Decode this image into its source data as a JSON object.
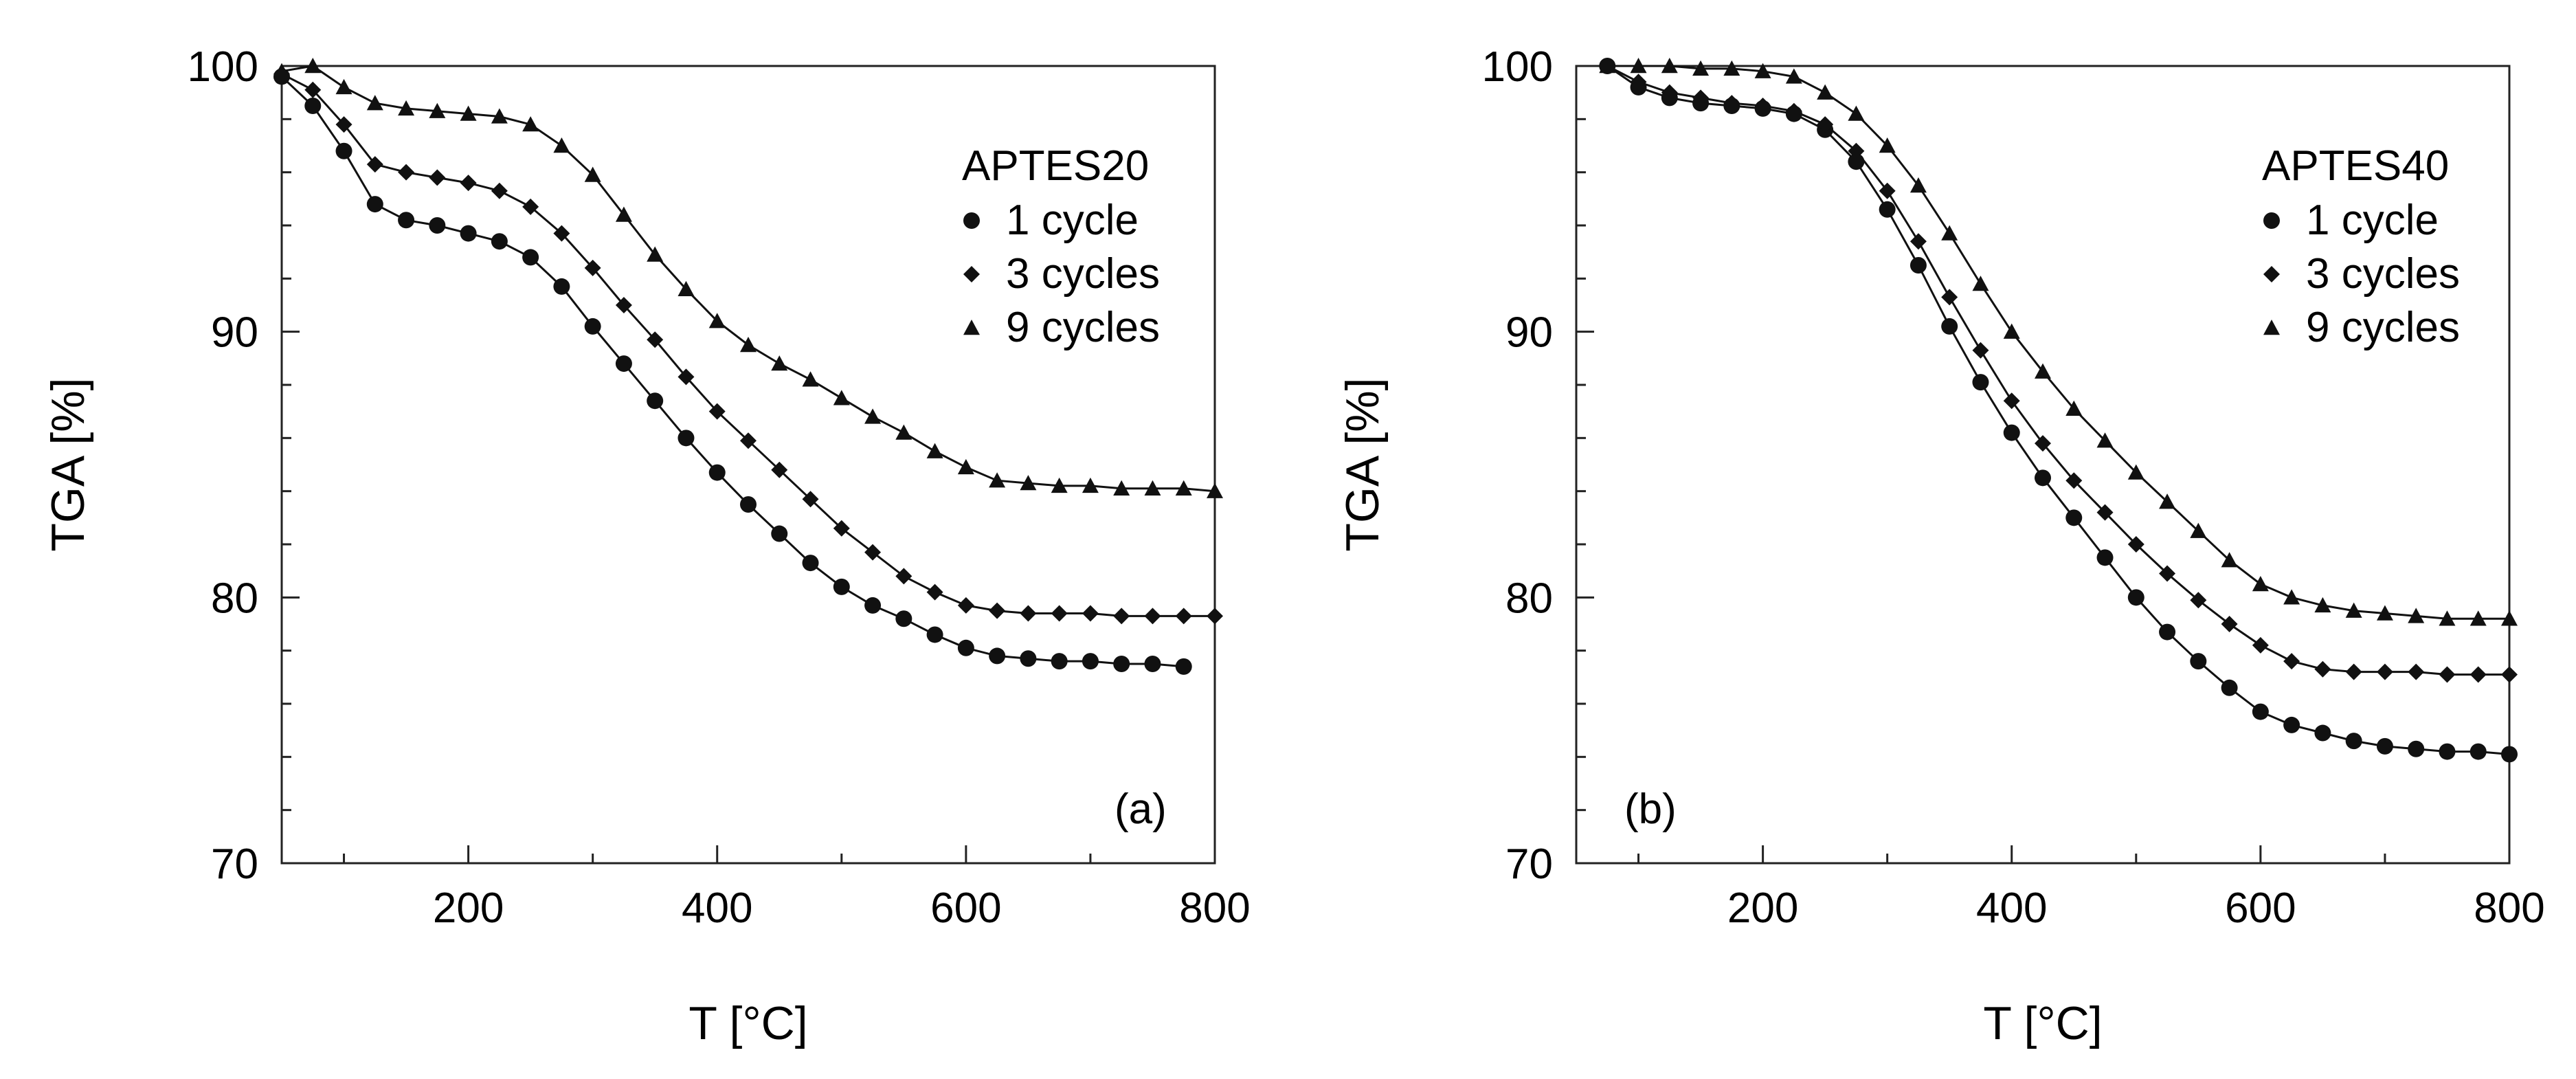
{
  "chart_data": [
    {
      "type": "scatter",
      "panel_label": "(a)",
      "legend_title": "APTES20",
      "legend_position": "top-right",
      "xlabel": "T [°C]",
      "ylabel": "TGA [%]",
      "xlim": [
        50,
        800
      ],
      "ylim": [
        70,
        100
      ],
      "xticks": [
        "200",
        "400",
        "600",
        "800"
      ],
      "yticks": [
        "70",
        "80",
        "90",
        "100"
      ],
      "series": [
        {
          "name": "1 cycle",
          "marker": "circle",
          "x": [
            50,
            75,
            100,
            125,
            150,
            175,
            200,
            225,
            250,
            275,
            300,
            325,
            350,
            375,
            400,
            425,
            450,
            475,
            500,
            525,
            550,
            575,
            600,
            625,
            650,
            675,
            700,
            725,
            750,
            775
          ],
          "y": [
            99.6,
            98.5,
            96.8,
            94.8,
            94.2,
            94.0,
            93.7,
            93.4,
            92.8,
            91.7,
            90.2,
            88.8,
            87.4,
            86.0,
            84.7,
            83.5,
            82.4,
            81.3,
            80.4,
            79.7,
            79.2,
            78.6,
            78.1,
            77.8,
            77.7,
            77.6,
            77.6,
            77.5,
            77.5,
            77.4
          ]
        },
        {
          "name": "3 cycles",
          "marker": "diamond",
          "x": [
            50,
            75,
            100,
            125,
            150,
            175,
            200,
            225,
            250,
            275,
            300,
            325,
            350,
            375,
            400,
            425,
            450,
            475,
            500,
            525,
            550,
            575,
            600,
            625,
            650,
            675,
            700,
            725,
            750,
            775,
            800
          ],
          "y": [
            99.7,
            99.1,
            97.8,
            96.3,
            96.0,
            95.8,
            95.6,
            95.3,
            94.7,
            93.7,
            92.4,
            91.0,
            89.7,
            88.3,
            87.0,
            85.9,
            84.8,
            83.7,
            82.6,
            81.7,
            80.8,
            80.2,
            79.7,
            79.5,
            79.4,
            79.4,
            79.4,
            79.3,
            79.3,
            79.3,
            79.3
          ]
        },
        {
          "name": "9 cycles",
          "marker": "triangle",
          "x": [
            50,
            75,
            100,
            125,
            150,
            175,
            200,
            225,
            250,
            275,
            300,
            325,
            350,
            375,
            400,
            425,
            450,
            475,
            500,
            525,
            550,
            575,
            600,
            625,
            650,
            675,
            700,
            725,
            750,
            775,
            800
          ],
          "y": [
            99.8,
            100.0,
            99.2,
            98.6,
            98.4,
            98.3,
            98.2,
            98.1,
            97.8,
            97.0,
            95.9,
            94.4,
            92.9,
            91.6,
            90.4,
            89.5,
            88.8,
            88.2,
            87.5,
            86.8,
            86.2,
            85.5,
            84.9,
            84.4,
            84.3,
            84.2,
            84.2,
            84.1,
            84.1,
            84.1,
            84.0
          ]
        }
      ]
    },
    {
      "type": "scatter",
      "panel_label": "(b)",
      "legend_title": "APTES40",
      "legend_position": "top-right",
      "xlabel": "T [°C]",
      "ylabel": "TGA [%]",
      "xlim": [
        50,
        800
      ],
      "ylim": [
        70,
        100
      ],
      "xticks": [
        "200",
        "400",
        "600",
        "800"
      ],
      "yticks": [
        "70",
        "80",
        "90",
        "100"
      ],
      "series": [
        {
          "name": "1 cycle",
          "marker": "circle",
          "x": [
            75,
            100,
            125,
            150,
            175,
            200,
            225,
            250,
            275,
            300,
            325,
            350,
            375,
            400,
            425,
            450,
            475,
            500,
            525,
            550,
            575,
            600,
            625,
            650,
            675,
            700,
            725,
            750,
            775,
            800
          ],
          "y": [
            100.0,
            99.2,
            98.8,
            98.6,
            98.5,
            98.4,
            98.2,
            97.6,
            96.4,
            94.6,
            92.5,
            90.2,
            88.1,
            86.2,
            84.5,
            83.0,
            81.5,
            80.0,
            78.7,
            77.6,
            76.6,
            75.7,
            75.2,
            74.9,
            74.6,
            74.4,
            74.3,
            74.2,
            74.2,
            74.1
          ]
        },
        {
          "name": "3 cycles",
          "marker": "diamond",
          "x": [
            75,
            100,
            125,
            150,
            175,
            200,
            225,
            250,
            275,
            300,
            325,
            350,
            375,
            400,
            425,
            450,
            475,
            500,
            525,
            550,
            575,
            600,
            625,
            650,
            675,
            700,
            725,
            750,
            775,
            800
          ],
          "y": [
            100.0,
            99.4,
            99.0,
            98.8,
            98.6,
            98.5,
            98.3,
            97.8,
            96.8,
            95.3,
            93.4,
            91.3,
            89.3,
            87.4,
            85.8,
            84.4,
            83.2,
            82.0,
            80.9,
            79.9,
            79.0,
            78.2,
            77.6,
            77.3,
            77.2,
            77.2,
            77.2,
            77.1,
            77.1,
            77.1
          ]
        },
        {
          "name": "9 cycles",
          "marker": "triangle",
          "x": [
            75,
            100,
            125,
            150,
            175,
            200,
            225,
            250,
            275,
            300,
            325,
            350,
            375,
            400,
            425,
            450,
            475,
            500,
            525,
            550,
            575,
            600,
            625,
            650,
            675,
            700,
            725,
            750,
            775,
            800
          ],
          "y": [
            100.0,
            100.0,
            100.0,
            99.9,
            99.9,
            99.8,
            99.6,
            99.0,
            98.2,
            97.0,
            95.5,
            93.7,
            91.8,
            90.0,
            88.5,
            87.1,
            85.9,
            84.7,
            83.6,
            82.5,
            81.4,
            80.5,
            80.0,
            79.7,
            79.5,
            79.4,
            79.3,
            79.2,
            79.2,
            79.2
          ]
        }
      ]
    }
  ]
}
